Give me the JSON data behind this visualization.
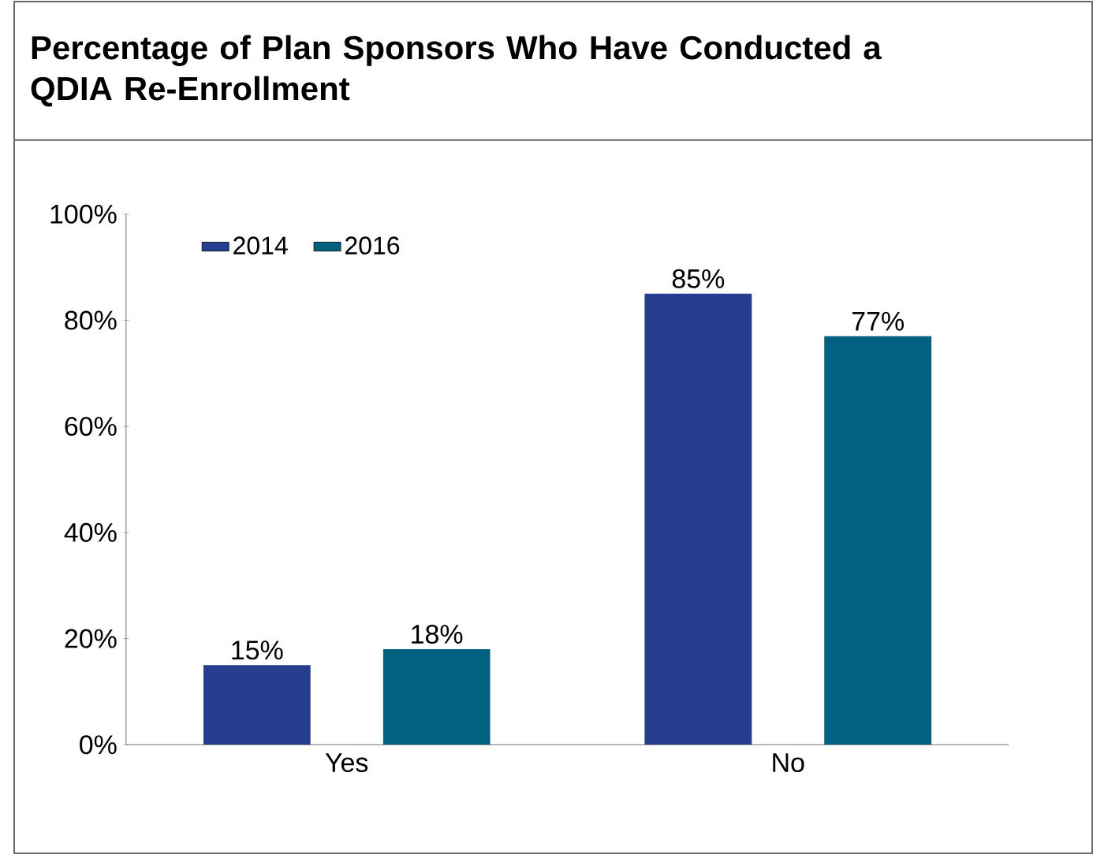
{
  "chart_data": {
    "type": "bar",
    "title": "Percentage of Plan Sponsors Who Have Conducted a QDIA Re-Enrollment",
    "categories": [
      "Yes",
      "No"
    ],
    "series": [
      {
        "name": "2014",
        "color": "#253f8e",
        "values": [
          15,
          85
        ],
        "value_labels": [
          "15%",
          "85%"
        ]
      },
      {
        "name": "2016",
        "color": "#006181",
        "values": [
          18,
          77
        ],
        "value_labels": [
          "18%",
          "77%"
        ]
      }
    ],
    "ylim": [
      0,
      100
    ],
    "yticks": [
      {
        "value": 0,
        "label": "0%"
      },
      {
        "value": 20,
        "label": "20%"
      },
      {
        "value": 40,
        "label": "40%"
      },
      {
        "value": 60,
        "label": "60%"
      },
      {
        "value": 80,
        "label": "80%"
      },
      {
        "value": 100,
        "label": "100%"
      }
    ],
    "legend": "top left",
    "grid": false
  }
}
